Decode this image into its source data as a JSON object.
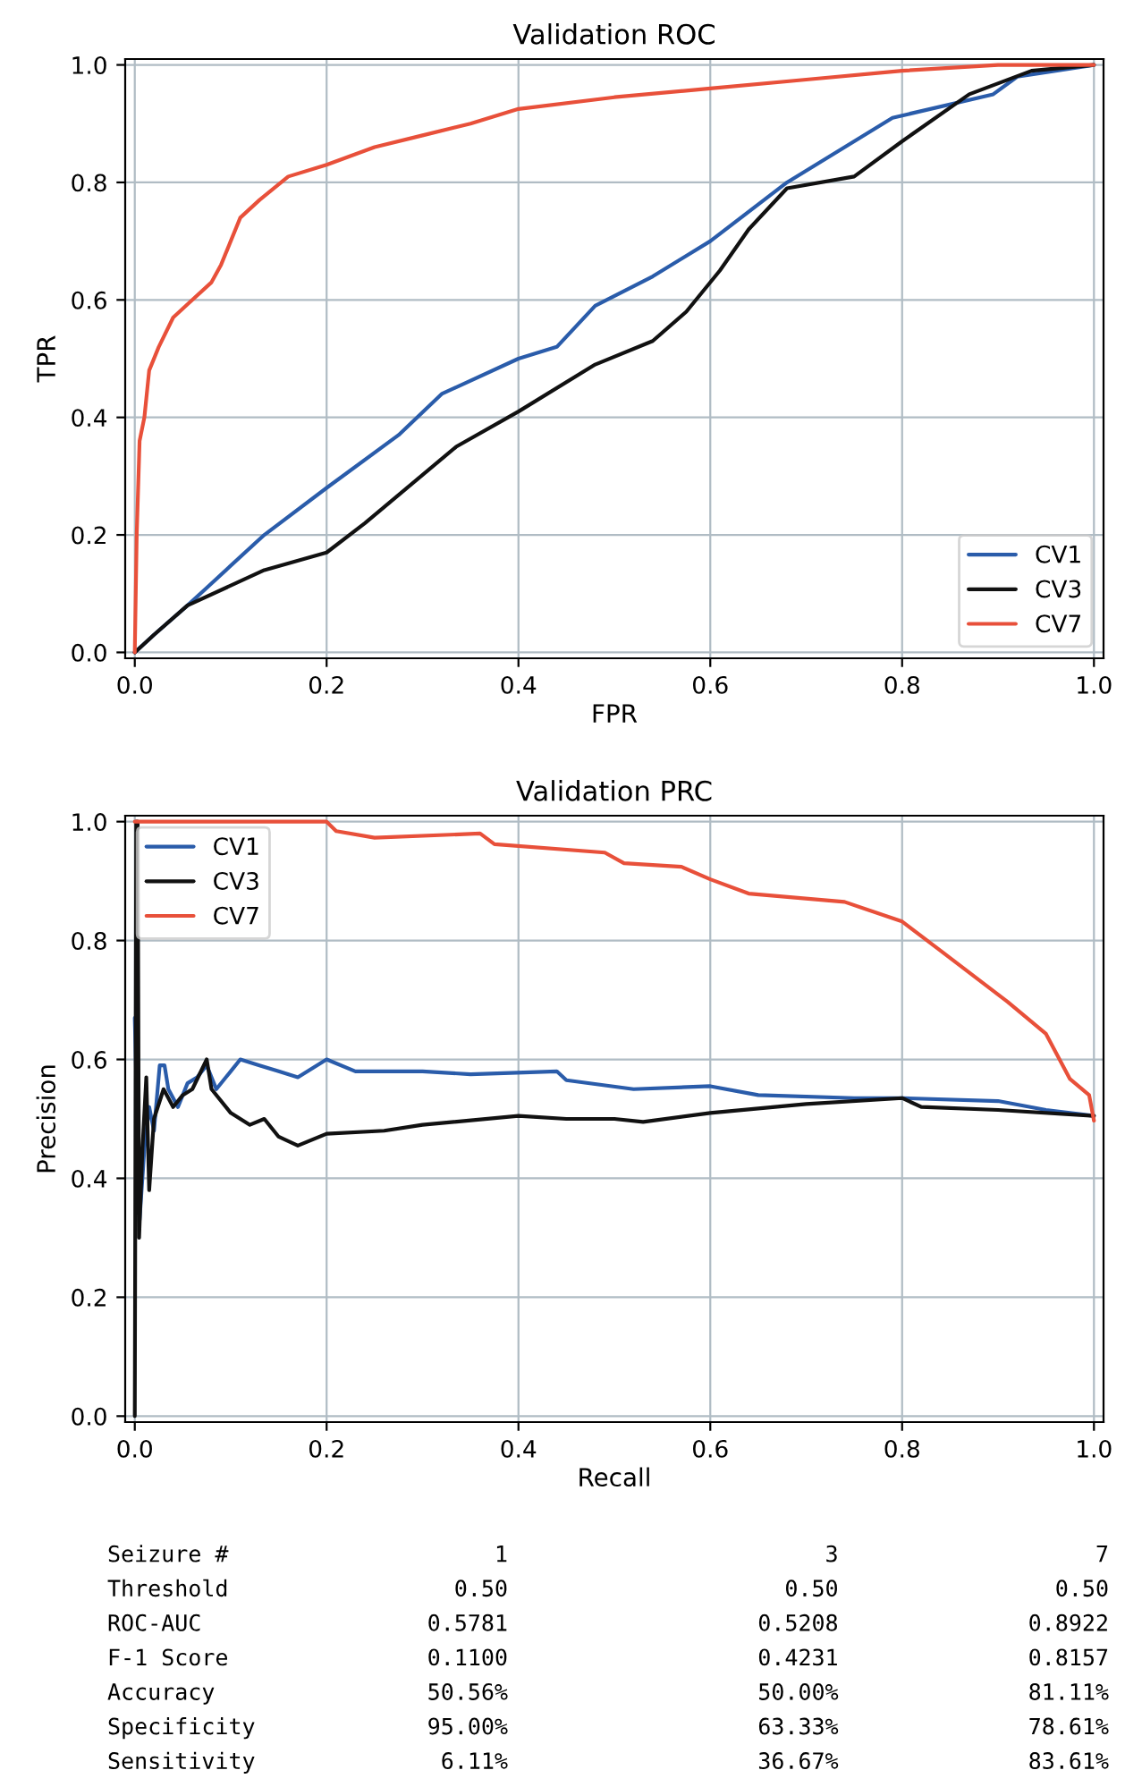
{
  "chart_data": [
    {
      "type": "line",
      "title": "Validation ROC",
      "xlabel": "FPR",
      "ylabel": "TPR",
      "xlim": [
        -0.01,
        1.01
      ],
      "ylim": [
        -0.01,
        1.01
      ],
      "xticks": [
        {
          "value": 0,
          "label": "0.0"
        },
        {
          "value": 0.2,
          "label": "0.2"
        },
        {
          "value": 0.4,
          "label": "0.4"
        },
        {
          "value": 0.6,
          "label": "0.6"
        },
        {
          "value": 0.8,
          "label": "0.8"
        },
        {
          "value": 1,
          "label": "1.0"
        }
      ],
      "yticks": [
        {
          "value": 0,
          "label": "0.0"
        },
        {
          "value": 0.2,
          "label": "0.2"
        },
        {
          "value": 0.4,
          "label": "0.4"
        },
        {
          "value": 0.6,
          "label": "0.6"
        },
        {
          "value": 0.8,
          "label": "0.8"
        },
        {
          "value": 1,
          "label": "1.0"
        }
      ],
      "grid": true,
      "legend": "bottom right",
      "series": [
        {
          "name": "CV1",
          "color": "#2a5caa",
          "x": [
            0,
            0.02,
            0.055,
            0.075,
            0.135,
            0.2,
            0.275,
            0.32,
            0.4,
            0.44,
            0.48,
            0.54,
            0.6,
            0.68,
            0.79,
            0.895,
            0.92,
            1.0
          ],
          "values": [
            0,
            0.03,
            0.08,
            0.11,
            0.2,
            0.28,
            0.37,
            0.44,
            0.5,
            0.52,
            0.59,
            0.64,
            0.7,
            0.8,
            0.91,
            0.95,
            0.98,
            1.0
          ]
        },
        {
          "name": "CV3",
          "color": "#111111",
          "x": [
            0,
            0.02,
            0.055,
            0.135,
            0.2,
            0.24,
            0.335,
            0.4,
            0.48,
            0.54,
            0.575,
            0.61,
            0.64,
            0.68,
            0.75,
            0.8,
            0.87,
            0.935,
            1.0
          ],
          "values": [
            0,
            0.03,
            0.08,
            0.14,
            0.17,
            0.22,
            0.35,
            0.41,
            0.49,
            0.53,
            0.58,
            0.65,
            0.72,
            0.79,
            0.81,
            0.87,
            0.95,
            0.99,
            1.0
          ]
        },
        {
          "name": "CV7",
          "color": "#e8503a",
          "x": [
            0,
            0.002,
            0.005,
            0.01,
            0.015,
            0.025,
            0.04,
            0.06,
            0.08,
            0.09,
            0.1,
            0.11,
            0.13,
            0.16,
            0.2,
            0.25,
            0.3,
            0.35,
            0.4,
            0.5,
            0.6,
            0.7,
            0.8,
            0.9,
            1.0
          ],
          "values": [
            0,
            0.2,
            0.36,
            0.4,
            0.48,
            0.52,
            0.57,
            0.6,
            0.63,
            0.66,
            0.7,
            0.74,
            0.77,
            0.81,
            0.83,
            0.86,
            0.88,
            0.9,
            0.925,
            0.945,
            0.96,
            0.975,
            0.99,
            1.0,
            1.0
          ]
        }
      ]
    },
    {
      "type": "line",
      "title": "Validation PRC",
      "xlabel": "Recall",
      "ylabel": "Precision",
      "xlim": [
        -0.01,
        1.01
      ],
      "ylim": [
        -0.01,
        1.01
      ],
      "xticks": [
        {
          "value": 0,
          "label": "0.0"
        },
        {
          "value": 0.2,
          "label": "0.2"
        },
        {
          "value": 0.4,
          "label": "0.4"
        },
        {
          "value": 0.6,
          "label": "0.6"
        },
        {
          "value": 0.8,
          "label": "0.8"
        },
        {
          "value": 1,
          "label": "1.0"
        }
      ],
      "yticks": [
        {
          "value": 0,
          "label": "0.0"
        },
        {
          "value": 0.2,
          "label": "0.2"
        },
        {
          "value": 0.4,
          "label": "0.4"
        },
        {
          "value": 0.6,
          "label": "0.6"
        },
        {
          "value": 0.8,
          "label": "0.8"
        },
        {
          "value": 1,
          "label": "1.0"
        }
      ],
      "grid": true,
      "legend": "top left",
      "series": [
        {
          "name": "CV1",
          "color": "#2a5caa",
          "x": [
            0.0,
            0.005,
            0.01,
            0.015,
            0.02,
            0.026,
            0.031,
            0.035,
            0.045,
            0.055,
            0.065,
            0.075,
            0.085,
            0.1,
            0.11,
            0.13,
            0.15,
            0.17,
            0.2,
            0.23,
            0.3,
            0.35,
            0.44,
            0.45,
            0.52,
            0.6,
            0.65,
            0.75,
            0.8,
            0.9,
            0.95,
            1.0
          ],
          "values": [
            0.67,
            0.33,
            0.45,
            0.52,
            0.48,
            0.59,
            0.59,
            0.55,
            0.52,
            0.56,
            0.57,
            0.59,
            0.55,
            0.58,
            0.6,
            0.59,
            0.58,
            0.57,
            0.6,
            0.58,
            0.58,
            0.575,
            0.58,
            0.565,
            0.55,
            0.555,
            0.54,
            0.535,
            0.535,
            0.53,
            0.515,
            0.505
          ]
        },
        {
          "name": "CV3",
          "color": "#111111",
          "x": [
            0.0,
            0.0015,
            0.003,
            0.0045,
            0.008,
            0.012,
            0.015,
            0.02,
            0.03,
            0.04,
            0.05,
            0.06,
            0.075,
            0.08,
            0.1,
            0.12,
            0.135,
            0.15,
            0.17,
            0.2,
            0.26,
            0.3,
            0.4,
            0.45,
            0.5,
            0.53,
            0.6,
            0.7,
            0.8,
            0.82,
            0.9,
            1.0
          ],
          "values": [
            0.0,
            1.0,
            1.0,
            0.3,
            0.45,
            0.57,
            0.38,
            0.5,
            0.55,
            0.52,
            0.54,
            0.55,
            0.6,
            0.55,
            0.51,
            0.49,
            0.5,
            0.47,
            0.455,
            0.475,
            0.48,
            0.49,
            0.505,
            0.5,
            0.5,
            0.495,
            0.51,
            0.525,
            0.535,
            0.52,
            0.515,
            0.505
          ]
        },
        {
          "name": "CV7",
          "color": "#e8503a",
          "x": [
            0,
            0.2,
            0.21,
            0.25,
            0.36,
            0.375,
            0.49,
            0.51,
            0.57,
            0.6,
            0.64,
            0.74,
            0.8,
            0.84,
            0.91,
            0.95,
            0.975,
            0.995,
            1.0
          ],
          "values": [
            1.0,
            1.0,
            0.984,
            0.973,
            0.98,
            0.962,
            0.948,
            0.93,
            0.924,
            0.903,
            0.879,
            0.865,
            0.832,
            0.783,
            0.697,
            0.643,
            0.567,
            0.54,
            0.497
          ]
        }
      ]
    },
    {
      "type": "other",
      "categories": [
        "Seizure #",
        "1",
        "3",
        "7"
      ],
      "annotations": [
        "Threshold",
        "0.50",
        "0.50",
        "0.50",
        "ROC-AUC",
        "0.5781",
        "0.5208",
        "0.8922",
        "F-1 Score",
        "0.1100",
        "0.4231",
        "0.8157",
        "Accuracy",
        "50.56%",
        "50.00%",
        "81.11%",
        "Specificity",
        "95.00%",
        "63.33%",
        "78.61%",
        "Sensitivity",
        "6.11%",
        "36.67%",
        "83.61%"
      ]
    }
  ]
}
